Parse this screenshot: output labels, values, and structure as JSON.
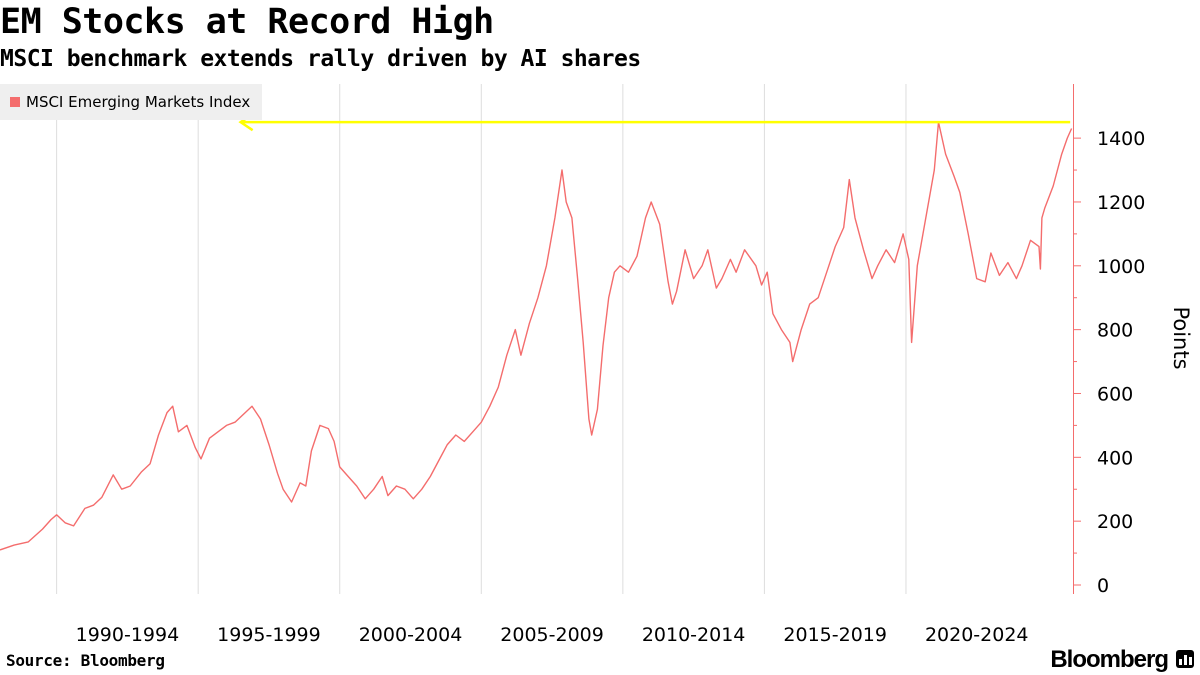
{
  "header": {
    "title": "EM Stocks at Record High",
    "subtitle": "MSCI benchmark extends rally driven by AI shares"
  },
  "footer": {
    "source": "Source: Bloomberg",
    "brand": "Bloomberg"
  },
  "colors": {
    "series": "#f46d6d",
    "highlight": "#ffff00",
    "grid": "#dddddd",
    "axis": "#f46d6d"
  },
  "chart_data": {
    "type": "line",
    "title": "EM Stocks at Record High",
    "subtitle": "MSCI benchmark extends rally driven by AI shares",
    "xlabel": "",
    "ylabel": "Points",
    "ylim": [
      0,
      1550
    ],
    "xlim": [
      1988.0,
      2025.9
    ],
    "grid": true,
    "legend_position": "top-left",
    "y_ticks": [
      0,
      200,
      400,
      600,
      800,
      1000,
      1200,
      1400
    ],
    "x_tick_labels": [
      "1990-1994",
      "1995-1999",
      "2000-2004",
      "2005-2009",
      "2010-2014",
      "2015-2019",
      "2020-2024"
    ],
    "x_tick_centers": [
      1992.5,
      1997.5,
      2002.5,
      2007.5,
      2012.5,
      2017.5,
      2022.5
    ],
    "x_gridlines": [
      1990,
      1995,
      2000,
      2005,
      2010,
      2015,
      2020
    ],
    "annotations": [
      {
        "type": "arrow",
        "label": "",
        "y": 1450,
        "x_from": 2025.8,
        "x_to": 1996.5
      }
    ],
    "series": [
      {
        "name": "MSCI Emerging Markets Index",
        "x": [
          1988.0,
          1988.5,
          1989.0,
          1989.5,
          1989.8,
          1990.0,
          1990.3,
          1990.6,
          1991.0,
          1991.3,
          1991.6,
          1992.0,
          1992.3,
          1992.6,
          1993.0,
          1993.3,
          1993.6,
          1993.9,
          1994.1,
          1994.3,
          1994.6,
          1994.9,
          1995.1,
          1995.4,
          1995.7,
          1996.0,
          1996.3,
          1996.6,
          1996.9,
          1997.2,
          1997.5,
          1997.8,
          1998.0,
          1998.3,
          1998.6,
          1998.8,
          1999.0,
          1999.3,
          1999.6,
          1999.8,
          2000.0,
          2000.3,
          2000.6,
          2000.9,
          2001.2,
          2001.5,
          2001.7,
          2002.0,
          2002.3,
          2002.6,
          2002.9,
          2003.2,
          2003.5,
          2003.8,
          2004.1,
          2004.4,
          2004.7,
          2005.0,
          2005.3,
          2005.6,
          2005.9,
          2006.2,
          2006.4,
          2006.7,
          2007.0,
          2007.3,
          2007.6,
          2007.85,
          2008.0,
          2008.2,
          2008.4,
          2008.6,
          2008.8,
          2008.9,
          2009.1,
          2009.3,
          2009.5,
          2009.7,
          2009.9,
          2010.2,
          2010.5,
          2010.8,
          2011.0,
          2011.3,
          2011.6,
          2011.75,
          2011.9,
          2012.2,
          2012.5,
          2012.8,
          2013.0,
          2013.3,
          2013.5,
          2013.8,
          2014.0,
          2014.3,
          2014.7,
          2014.9,
          2015.1,
          2015.3,
          2015.6,
          2015.9,
          2016.0,
          2016.3,
          2016.6,
          2016.9,
          2017.2,
          2017.5,
          2017.8,
          2018.0,
          2018.2,
          2018.5,
          2018.8,
          2019.0,
          2019.3,
          2019.6,
          2019.9,
          2020.1,
          2020.2,
          2020.4,
          2020.7,
          2021.0,
          2021.15,
          2021.4,
          2021.7,
          2021.9,
          2022.2,
          2022.5,
          2022.8,
          2023.0,
          2023.3,
          2023.6,
          2023.9,
          2024.1,
          2024.4,
          2024.7,
          2024.75,
          2024.8,
          2024.9,
          2025.2,
          2025.5,
          2025.7,
          2025.85
        ],
        "values": [
          110,
          125,
          135,
          175,
          205,
          220,
          195,
          185,
          240,
          250,
          275,
          345,
          300,
          310,
          355,
          380,
          470,
          540,
          560,
          480,
          500,
          430,
          395,
          460,
          480,
          500,
          510,
          535,
          560,
          520,
          440,
          350,
          300,
          260,
          320,
          310,
          420,
          500,
          490,
          450,
          370,
          340,
          310,
          270,
          300,
          340,
          280,
          310,
          300,
          270,
          300,
          340,
          390,
          440,
          470,
          450,
          480,
          510,
          560,
          620,
          720,
          800,
          720,
          820,
          900,
          1000,
          1150,
          1300,
          1200,
          1150,
          960,
          760,
          520,
          470,
          550,
          750,
          900,
          980,
          1000,
          980,
          1030,
          1150,
          1200,
          1130,
          950,
          880,
          920,
          1050,
          960,
          1000,
          1050,
          930,
          960,
          1020,
          980,
          1050,
          1000,
          940,
          980,
          850,
          800,
          760,
          700,
          800,
          880,
          900,
          980,
          1060,
          1120,
          1270,
          1150,
          1050,
          960,
          1000,
          1050,
          1010,
          1100,
          1020,
          760,
          1000,
          1150,
          1300,
          1450,
          1350,
          1280,
          1230,
          1100,
          960,
          950,
          1040,
          970,
          1010,
          960,
          1000,
          1080,
          1060,
          990,
          1150,
          1180,
          1250,
          1350,
          1400,
          1430
        ]
      }
    ]
  }
}
